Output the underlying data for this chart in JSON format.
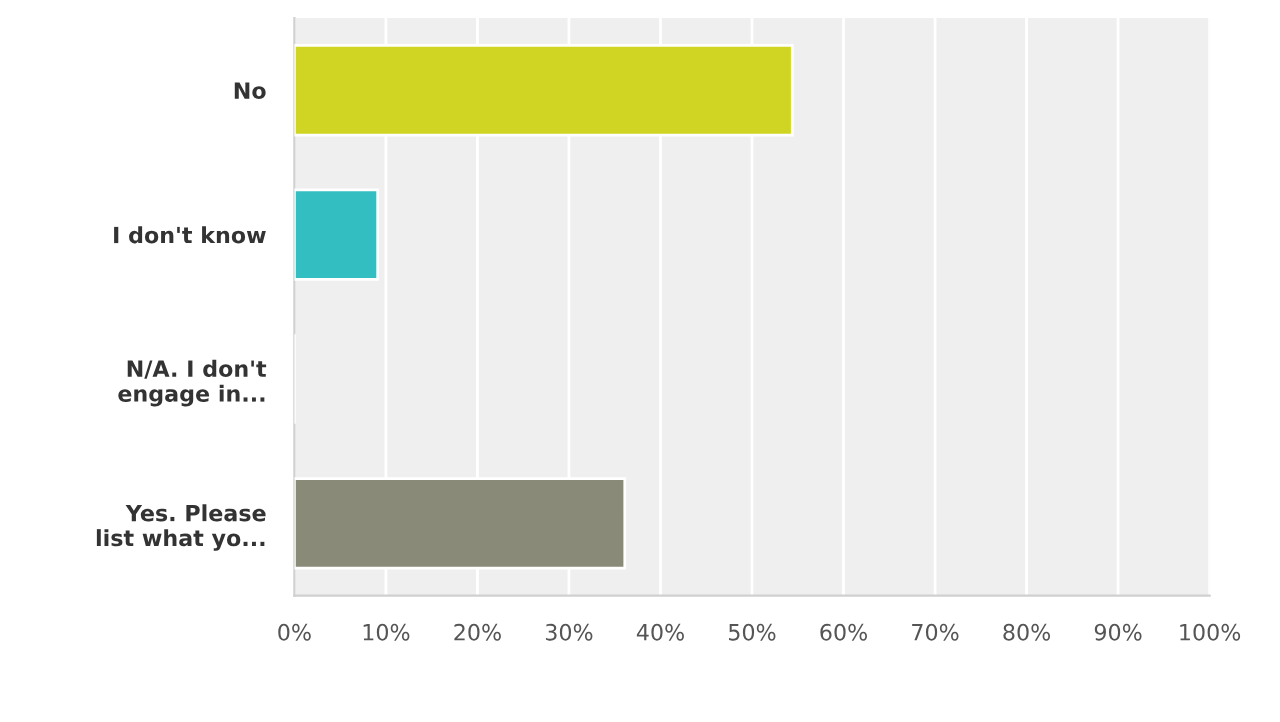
{
  "chart_data": {
    "type": "bar",
    "orientation": "horizontal",
    "categories": [
      "No",
      "I don't know",
      "N/A. I don't\nengage in...",
      "Yes. Please\nlist what yo..."
    ],
    "values": [
      54.4,
      9.1,
      0,
      36.1
    ],
    "colors": [
      "#d0d524",
      "#33bec1",
      "#9e9e9e",
      "#898a78"
    ],
    "xlim": [
      0,
      100
    ],
    "xticks": [
      {
        "value": 0,
        "label": "0%"
      },
      {
        "value": 10,
        "label": "10%"
      },
      {
        "value": 20,
        "label": "20%"
      },
      {
        "value": 30,
        "label": "30%"
      },
      {
        "value": 40,
        "label": "40%"
      },
      {
        "value": 50,
        "label": "50%"
      },
      {
        "value": 60,
        "label": "60%"
      },
      {
        "value": 70,
        "label": "70%"
      },
      {
        "value": 80,
        "label": "80%"
      },
      {
        "value": 90,
        "label": "90%"
      },
      {
        "value": 100,
        "label": "100%"
      }
    ],
    "grid": "x"
  }
}
